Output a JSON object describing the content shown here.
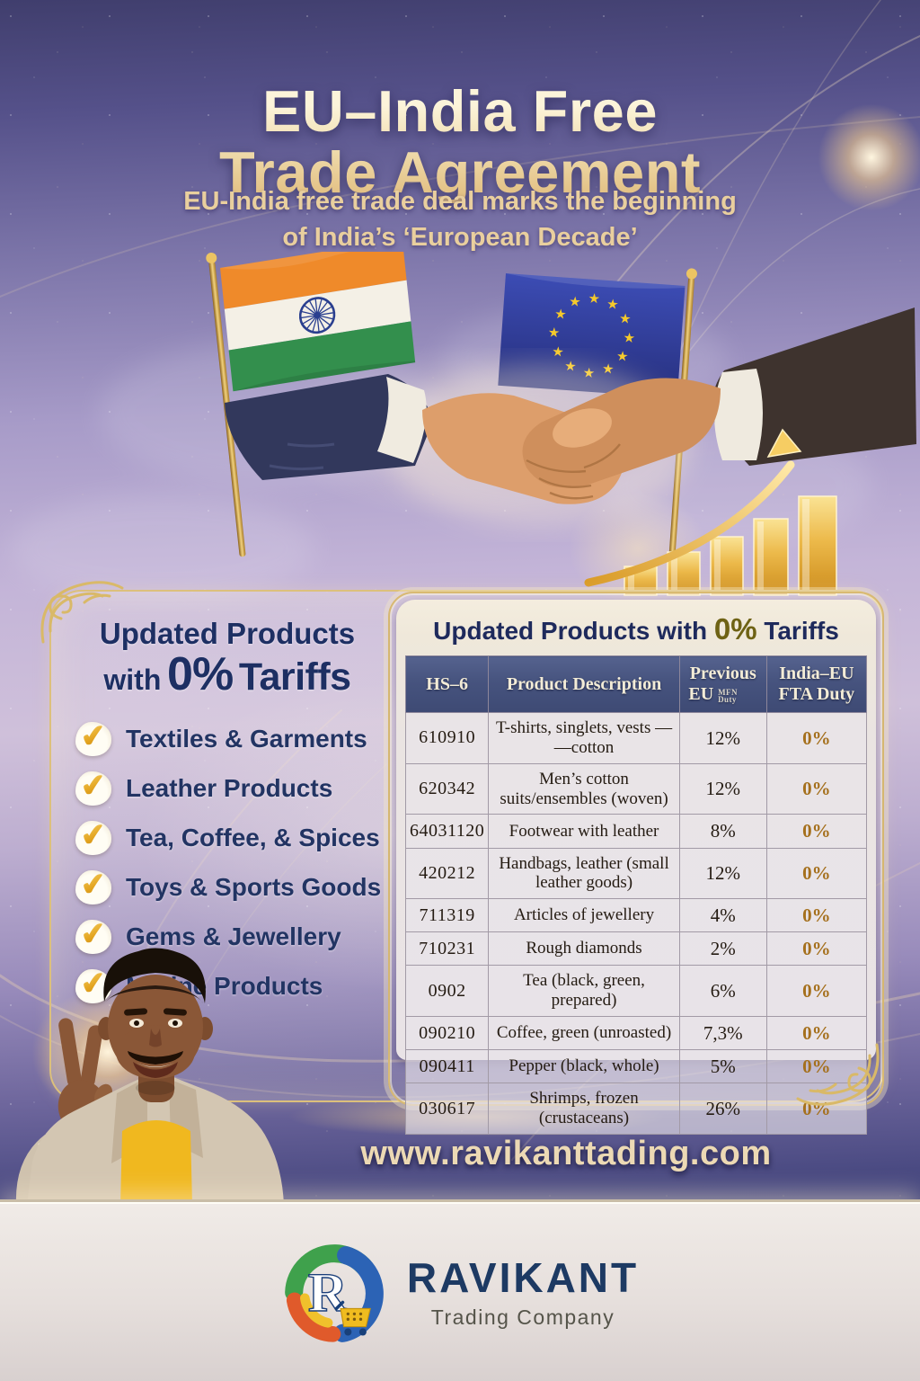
{
  "header": {
    "title_line1": "EU–India Free",
    "title_line2": "Trade Agreement",
    "subtitle_line1": "EU-India free trade deal marks the beginning",
    "subtitle_line2": "of India’s ‘European Decade’"
  },
  "left_panel": {
    "title_line1": "Updated Products",
    "title_with": "with",
    "title_zero": "0%",
    "title_tariffs": "Tariffs",
    "items": [
      "Textiles & Garments",
      "Leather Products",
      "Tea, Coffee, & Spices",
      "Toys & Sports Goods",
      "Gems & Jewellery",
      "Marine Products"
    ]
  },
  "table_card": {
    "title_prefix": "Updated Products with ",
    "title_zero": "0%",
    "title_suffix": " Tariffs",
    "columns": [
      {
        "line1": "HS–6"
      },
      {
        "line1": "Product Description"
      },
      {
        "line1": "Previous",
        "line2": "EU",
        "sub": "MFN Duty"
      },
      {
        "line1": "India–EU",
        "line2": "FTA Duty"
      }
    ],
    "rows": [
      {
        "hs6": "610910",
        "description": "T-shirts, singlets, vests — —cotton",
        "previous_duty": "12%",
        "fta_duty": "0%"
      },
      {
        "hs6": "620342",
        "description": "Men’s cotton suits/ensembles (woven)",
        "previous_duty": "12%",
        "fta_duty": "0%"
      },
      {
        "hs6": "64031120",
        "description": "Footwear with leather",
        "previous_duty": "8%",
        "fta_duty": "0%"
      },
      {
        "hs6": "420212",
        "description": "Handbags, leather (small leather goods)",
        "previous_duty": "12%",
        "fta_duty": "0%"
      },
      {
        "hs6": "711319",
        "description": "Articles of jewellery",
        "previous_duty": "4%",
        "fta_duty": "0%"
      },
      {
        "hs6": "710231",
        "description": "Rough diamonds",
        "previous_duty": "2%",
        "fta_duty": "0%"
      },
      {
        "hs6": "0902",
        "description": "Tea (black, green, prepared)",
        "previous_duty": "6%",
        "fta_duty": "0%"
      },
      {
        "hs6": "090210",
        "description": "Coffee, green (unroasted)",
        "previous_duty": "7,3%",
        "fta_duty": "0%"
      },
      {
        "hs6": "090411",
        "description": "Pepper (black, whole)",
        "previous_duty": "5%",
        "fta_duty": "0%"
      },
      {
        "hs6": "030617",
        "description": "Shrimps, frozen (crustaceans)",
        "previous_duty": "26%",
        "fta_duty": "0%"
      }
    ]
  },
  "website": {
    "url": "www.ravikanttading.com"
  },
  "brand": {
    "name": "RAVIKANT",
    "tagline": "Trading Company",
    "logo_letter": "R"
  },
  "icons": {
    "check": "✔"
  },
  "colors": {
    "gold_border": "#d9ba72",
    "navy_text": "#1e2a5c",
    "table_header_blue": "#46537e",
    "fta_gold": "#a5701d",
    "card_cream": "#f2ebdc",
    "title_cream": "#f5e9c9",
    "subtitle_gold": "#e9cf9e"
  }
}
